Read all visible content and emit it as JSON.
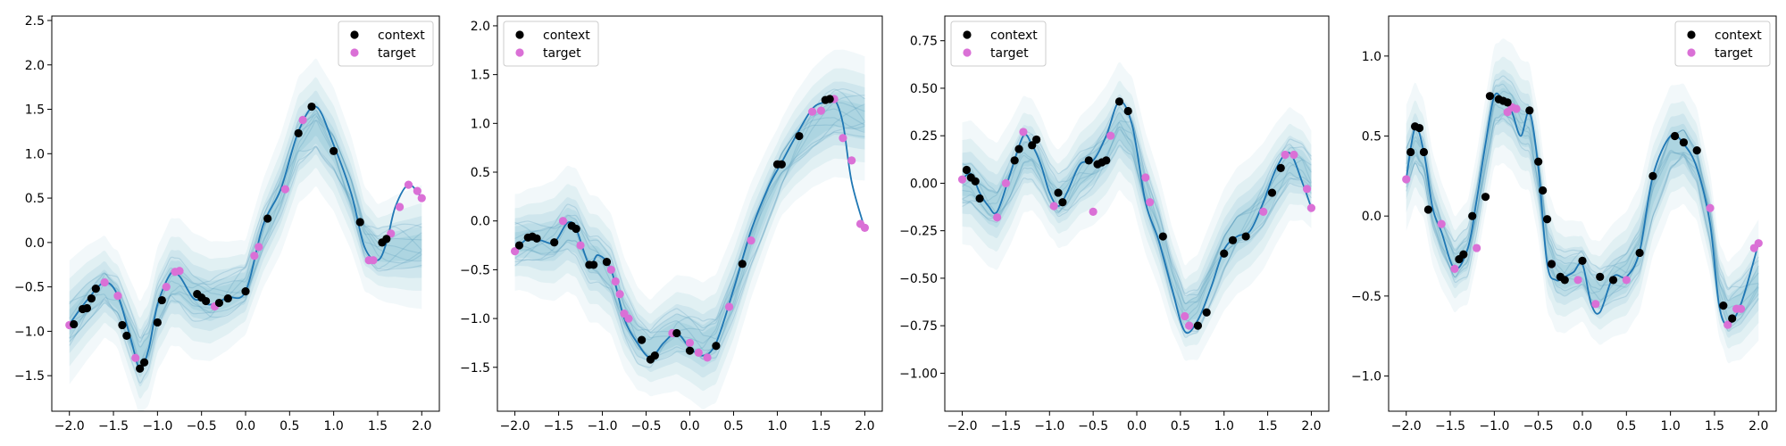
{
  "chart_data": [
    {
      "type": "line",
      "xlim": [
        -2.2,
        2.2
      ],
      "ylim": [
        -1.9,
        2.55
      ],
      "xticks": [
        -2.0,
        -1.5,
        -1.0,
        -0.5,
        0.0,
        0.5,
        1.0,
        1.5,
        2.0
      ],
      "xtick_labels": [
        "−2.0",
        "−1.5",
        "−1.0",
        "−0.5",
        "0.0",
        "0.5",
        "1.0",
        "1.5",
        "2.0"
      ],
      "yticks": [
        -1.5,
        -1.0,
        -0.5,
        0.0,
        0.5,
        1.0,
        1.5,
        2.0,
        2.5
      ],
      "ytick_labels": [
        "−1.5",
        "−1.0",
        "−0.5",
        "0.0",
        "0.5",
        "1.0",
        "1.5",
        "2.0",
        "2.5"
      ],
      "legend": {
        "location": "upper-right",
        "entries": [
          "context",
          "target"
        ]
      },
      "true_function": {
        "x": [
          -2.0,
          -1.8,
          -1.6,
          -1.45,
          -1.3,
          -1.2,
          -1.1,
          -1.0,
          -0.85,
          -0.75,
          -0.6,
          -0.5,
          -0.4,
          -0.2,
          0.0,
          0.2,
          0.4,
          0.6,
          0.8,
          1.0,
          1.2,
          1.35,
          1.5,
          1.6,
          1.7,
          1.85,
          2.0
        ],
        "y": [
          -0.92,
          -0.65,
          -0.45,
          -0.6,
          -1.1,
          -1.42,
          -1.2,
          -0.7,
          -0.35,
          -0.38,
          -0.62,
          -0.65,
          -0.7,
          -0.62,
          -0.55,
          0.2,
          0.6,
          1.25,
          1.53,
          1.1,
          0.55,
          -0.05,
          -0.2,
          0.0,
          0.4,
          0.65,
          0.5
        ]
      },
      "mean_prediction": {
        "x": [
          -2.0,
          -1.8,
          -1.6,
          -1.45,
          -1.3,
          -1.2,
          -1.1,
          -1.0,
          -0.85,
          -0.75,
          -0.6,
          -0.5,
          -0.4,
          -0.2,
          0.0,
          0.2,
          0.4,
          0.6,
          0.8,
          1.0,
          1.2,
          1.35,
          1.5,
          1.6,
          1.7,
          1.85,
          2.0
        ],
        "y": [
          -0.9,
          -0.68,
          -0.5,
          -0.65,
          -1.05,
          -1.3,
          -1.15,
          -0.75,
          -0.45,
          -0.45,
          -0.6,
          -0.63,
          -0.66,
          -0.6,
          -0.5,
          0.1,
          0.55,
          1.15,
          1.35,
          1.05,
          0.55,
          0.05,
          -0.1,
          -0.1,
          -0.08,
          -0.07,
          -0.05
        ]
      },
      "context": {
        "x": [
          -1.95,
          -1.85,
          -1.8,
          -1.75,
          -1.7,
          -1.4,
          -1.35,
          -1.2,
          -1.15,
          -1.0,
          -0.95,
          -0.55,
          -0.5,
          -0.45,
          -0.3,
          -0.2,
          0.0,
          0.25,
          0.6,
          0.75,
          1.0,
          1.3,
          1.55,
          1.6
        ],
        "y": [
          -0.92,
          -0.75,
          -0.74,
          -0.63,
          -0.52,
          -0.93,
          -1.05,
          -1.42,
          -1.35,
          -0.9,
          -0.65,
          -0.58,
          -0.62,
          -0.66,
          -0.68,
          -0.63,
          -0.55,
          0.27,
          1.23,
          1.53,
          1.03,
          0.23,
          0.0,
          0.04
        ]
      },
      "target": {
        "x": [
          -2.0,
          -1.6,
          -1.45,
          -1.25,
          -0.9,
          -0.8,
          -0.75,
          -0.35,
          0.1,
          0.15,
          0.45,
          0.65,
          1.4,
          1.45,
          1.65,
          1.75,
          1.85,
          1.95,
          2.0
        ],
        "y": [
          -0.93,
          -0.45,
          -0.6,
          -1.3,
          -0.5,
          -0.33,
          -0.32,
          -0.72,
          -0.15,
          -0.05,
          0.6,
          1.38,
          -0.2,
          -0.2,
          0.1,
          0.4,
          0.65,
          0.58,
          0.5
        ]
      }
    },
    {
      "type": "line",
      "xlim": [
        -2.2,
        2.2
      ],
      "ylim": [
        -1.95,
        2.1
      ],
      "xticks": [
        -2.0,
        -1.5,
        -1.0,
        -0.5,
        0.0,
        0.5,
        1.0,
        1.5,
        2.0
      ],
      "xtick_labels": [
        "−2.0",
        "−1.5",
        "−1.0",
        "−0.5",
        "0.0",
        "0.5",
        "1.0",
        "1.5",
        "2.0"
      ],
      "yticks": [
        -1.5,
        -1.0,
        -0.5,
        0.0,
        0.5,
        1.0,
        1.5,
        2.0
      ],
      "ytick_labels": [
        "−1.5",
        "−1.0",
        "−0.5",
        "0.0",
        "0.5",
        "1.0",
        "1.5",
        "2.0"
      ],
      "legend": {
        "location": "upper-left",
        "entries": [
          "context",
          "target"
        ]
      },
      "true_function": {
        "x": [
          -2.0,
          -1.85,
          -1.7,
          -1.55,
          -1.4,
          -1.3,
          -1.15,
          -1.05,
          -0.9,
          -0.75,
          -0.6,
          -0.45,
          -0.3,
          -0.15,
          0.0,
          0.15,
          0.3,
          0.5,
          0.7,
          0.9,
          1.05,
          1.2,
          1.4,
          1.55,
          1.65,
          1.75,
          1.85,
          2.0
        ],
        "y": [
          -0.3,
          -0.18,
          -0.2,
          -0.22,
          -0.02,
          -0.08,
          -0.45,
          -0.35,
          -0.5,
          -1.0,
          -1.25,
          -1.4,
          -1.25,
          -1.15,
          -1.3,
          -1.38,
          -1.25,
          -0.7,
          -0.1,
          0.35,
          0.6,
          0.85,
          1.15,
          1.22,
          1.25,
          1.0,
          0.4,
          -0.08
        ]
      },
      "mean_prediction": {
        "x": [
          -2.0,
          -1.85,
          -1.7,
          -1.55,
          -1.4,
          -1.3,
          -1.15,
          -1.05,
          -0.9,
          -0.75,
          -0.6,
          -0.45,
          -0.3,
          -0.15,
          0.0,
          0.15,
          0.3,
          0.5,
          0.7,
          0.9,
          1.05,
          1.2,
          1.4,
          1.55,
          1.65,
          1.75,
          1.85,
          2.0
        ],
        "y": [
          -0.22,
          -0.2,
          -0.22,
          -0.2,
          -0.08,
          -0.12,
          -0.38,
          -0.4,
          -0.55,
          -0.95,
          -1.2,
          -1.3,
          -1.22,
          -1.15,
          -1.2,
          -1.28,
          -1.2,
          -0.75,
          -0.2,
          0.25,
          0.55,
          0.75,
          0.95,
          1.05,
          1.1,
          1.1,
          1.08,
          1.05
        ]
      },
      "context": {
        "x": [
          -1.95,
          -1.85,
          -1.8,
          -1.75,
          -1.55,
          -1.35,
          -1.3,
          -1.15,
          -1.1,
          -0.95,
          -0.55,
          -0.45,
          -0.4,
          -0.15,
          0.0,
          0.3,
          0.6,
          1.0,
          1.05,
          1.25,
          1.55,
          1.6
        ],
        "y": [
          -0.25,
          -0.17,
          -0.16,
          -0.18,
          -0.22,
          -0.05,
          -0.08,
          -0.45,
          -0.45,
          -0.42,
          -1.22,
          -1.42,
          -1.38,
          -1.15,
          -1.33,
          -1.28,
          -0.44,
          0.58,
          0.58,
          0.87,
          1.24,
          1.25
        ]
      },
      "target": {
        "x": [
          -2.0,
          -1.45,
          -1.25,
          -0.9,
          -0.85,
          -0.8,
          -0.75,
          -0.7,
          -0.2,
          0.0,
          0.1,
          0.2,
          0.45,
          0.7,
          1.4,
          1.5,
          1.65,
          1.75,
          1.85,
          1.95,
          2.0
        ],
        "y": [
          -0.31,
          0.0,
          -0.25,
          -0.5,
          -0.62,
          -0.75,
          -0.95,
          -1.0,
          -1.15,
          -1.25,
          -1.35,
          -1.4,
          -0.88,
          -0.2,
          1.12,
          1.13,
          1.25,
          0.85,
          0.62,
          -0.03,
          -0.07
        ]
      }
    },
    {
      "type": "line",
      "xlim": [
        -2.2,
        2.2
      ],
      "ylim": [
        -1.2,
        0.88
      ],
      "xticks": [
        -2.0,
        -1.5,
        -1.0,
        -0.5,
        0.0,
        0.5,
        1.0,
        1.5,
        2.0
      ],
      "xtick_labels": [
        "−2.0",
        "−1.5",
        "−1.0",
        "−0.5",
        "0.0",
        "0.5",
        "1.0",
        "1.5",
        "2.0"
      ],
      "yticks": [
        -1.0,
        -0.75,
        -0.5,
        -0.25,
        0.0,
        0.25,
        0.5,
        0.75
      ],
      "ytick_labels": [
        "−1.00",
        "−0.75",
        "−0.50",
        "−0.25",
        "0.00",
        "0.25",
        "0.50",
        "0.75"
      ],
      "legend": {
        "location": "upper-left",
        "entries": [
          "context",
          "target"
        ]
      },
      "true_function": {
        "x": [
          -2.0,
          -1.9,
          -1.8,
          -1.7,
          -1.6,
          -1.45,
          -1.3,
          -1.2,
          -1.1,
          -1.0,
          -0.9,
          -0.8,
          -0.65,
          -0.5,
          -0.35,
          -0.2,
          -0.05,
          0.1,
          0.25,
          0.4,
          0.55,
          0.7,
          0.85,
          1.0,
          1.15,
          1.3,
          1.45,
          1.6,
          1.75,
          1.9,
          2.0
        ],
        "y": [
          0.02,
          0.05,
          -0.05,
          -0.12,
          -0.15,
          0.05,
          0.25,
          0.2,
          0.1,
          -0.05,
          -0.12,
          -0.05,
          0.1,
          0.12,
          0.25,
          0.43,
          0.3,
          -0.1,
          -0.3,
          -0.55,
          -0.78,
          -0.72,
          -0.55,
          -0.35,
          -0.28,
          -0.25,
          -0.1,
          0.08,
          0.16,
          0.0,
          -0.13
        ]
      },
      "mean_prediction": {
        "x": [
          -2.0,
          -1.9,
          -1.8,
          -1.7,
          -1.6,
          -1.45,
          -1.3,
          -1.2,
          -1.1,
          -1.0,
          -0.9,
          -0.8,
          -0.65,
          -0.5,
          -0.35,
          -0.2,
          -0.05,
          0.1,
          0.25,
          0.4,
          0.55,
          0.7,
          0.85,
          1.0,
          1.15,
          1.3,
          1.45,
          1.6,
          1.75,
          1.9,
          2.0
        ],
        "y": [
          0.0,
          0.0,
          -0.05,
          -0.1,
          -0.12,
          0.0,
          0.15,
          0.15,
          0.08,
          -0.02,
          -0.08,
          -0.05,
          0.05,
          0.1,
          0.18,
          0.3,
          0.22,
          -0.05,
          -0.25,
          -0.5,
          -0.68,
          -0.65,
          -0.5,
          -0.35,
          -0.25,
          -0.2,
          -0.12,
          0.0,
          0.1,
          0.08,
          0.02
        ]
      },
      "context": {
        "x": [
          -1.95,
          -1.9,
          -1.85,
          -1.8,
          -1.4,
          -1.35,
          -1.2,
          -1.15,
          -0.9,
          -0.85,
          -0.55,
          -0.45,
          -0.4,
          -0.35,
          -0.2,
          -0.1,
          0.3,
          0.7,
          0.8,
          1.0,
          1.1,
          1.25,
          1.55,
          1.65
        ],
        "y": [
          0.07,
          0.03,
          0.01,
          -0.08,
          0.12,
          0.18,
          0.2,
          0.23,
          -0.05,
          -0.1,
          0.12,
          0.1,
          0.11,
          0.12,
          0.43,
          0.38,
          -0.28,
          -0.75,
          -0.68,
          -0.37,
          -0.3,
          -0.28,
          -0.05,
          0.08
        ]
      },
      "target": {
        "x": [
          -2.0,
          -1.6,
          -1.5,
          -1.3,
          -0.95,
          -0.5,
          -0.3,
          0.1,
          0.15,
          0.55,
          0.6,
          1.45,
          1.7,
          1.8,
          1.95,
          2.0
        ],
        "y": [
          0.02,
          -0.18,
          0.0,
          0.27,
          -0.12,
          -0.15,
          0.25,
          0.03,
          -0.1,
          -0.7,
          -0.75,
          -0.15,
          0.15,
          0.15,
          -0.03,
          -0.13
        ]
      }
    },
    {
      "type": "line",
      "xlim": [
        -2.2,
        2.2
      ],
      "ylim": [
        -1.22,
        1.25
      ],
      "xticks": [
        -2.0,
        -1.5,
        -1.0,
        -0.5,
        0.0,
        0.5,
        1.0,
        1.5,
        2.0
      ],
      "xtick_labels": [
        "−2.0",
        "−1.5",
        "−1.0",
        "−0.5",
        "0.0",
        "0.5",
        "1.0",
        "1.5",
        "2.0"
      ],
      "yticks": [
        -1.0,
        -0.5,
        0.0,
        0.5,
        1.0
      ],
      "ytick_labels": [
        "−1.0",
        "−0.5",
        "0.0",
        "0.5",
        "1.0"
      ],
      "legend": {
        "location": "upper-right",
        "entries": [
          "context",
          "target"
        ]
      },
      "true_function": {
        "x": [
          -2.0,
          -1.9,
          -1.8,
          -1.7,
          -1.6,
          -1.45,
          -1.3,
          -1.2,
          -1.1,
          -1.0,
          -0.9,
          -0.8,
          -0.7,
          -0.6,
          -0.5,
          -0.4,
          -0.3,
          -0.2,
          -0.1,
          0.0,
          0.1,
          0.2,
          0.35,
          0.5,
          0.65,
          0.8,
          1.0,
          1.15,
          1.3,
          1.45,
          1.55,
          1.65,
          1.8,
          2.0
        ],
        "y": [
          0.23,
          0.55,
          0.4,
          0.05,
          -0.1,
          -0.33,
          -0.2,
          0.1,
          0.45,
          0.75,
          0.72,
          0.65,
          0.5,
          0.65,
          0.3,
          -0.3,
          -0.4,
          -0.38,
          -0.35,
          -0.3,
          -0.55,
          -0.6,
          -0.38,
          -0.38,
          -0.22,
          0.25,
          0.5,
          0.45,
          0.3,
          -0.05,
          -0.55,
          -0.68,
          -0.55,
          -0.17
        ]
      },
      "mean_prediction": {
        "x": [
          -2.0,
          -1.9,
          -1.8,
          -1.7,
          -1.6,
          -1.45,
          -1.3,
          -1.2,
          -1.1,
          -1.0,
          -0.9,
          -0.8,
          -0.7,
          -0.6,
          -0.5,
          -0.4,
          -0.3,
          -0.2,
          -0.1,
          0.0,
          0.1,
          0.2,
          0.35,
          0.5,
          0.65,
          0.8,
          1.0,
          1.15,
          1.3,
          1.45,
          1.55,
          1.65,
          1.8,
          2.0
        ],
        "y": [
          0.3,
          0.45,
          0.35,
          0.05,
          -0.12,
          -0.3,
          -0.22,
          0.05,
          0.38,
          0.68,
          0.72,
          0.68,
          0.58,
          0.55,
          0.25,
          -0.2,
          -0.35,
          -0.38,
          -0.36,
          -0.35,
          -0.45,
          -0.48,
          -0.4,
          -0.35,
          -0.2,
          0.15,
          0.42,
          0.45,
          0.32,
          -0.05,
          -0.45,
          -0.6,
          -0.55,
          -0.4
        ]
      },
      "context": {
        "x": [
          -1.95,
          -1.9,
          -1.85,
          -1.8,
          -1.75,
          -1.4,
          -1.35,
          -1.25,
          -1.1,
          -1.05,
          -0.95,
          -0.9,
          -0.85,
          -0.6,
          -0.5,
          -0.45,
          -0.4,
          -0.35,
          -0.25,
          -0.2,
          0.0,
          0.2,
          0.35,
          0.65,
          0.8,
          1.05,
          1.15,
          1.3,
          1.6,
          1.7
        ],
        "y": [
          0.4,
          0.56,
          0.55,
          0.4,
          0.04,
          -0.27,
          -0.24,
          0.0,
          0.12,
          0.75,
          0.73,
          0.72,
          0.71,
          0.66,
          0.34,
          0.16,
          -0.02,
          -0.3,
          -0.38,
          -0.4,
          -0.28,
          -0.38,
          -0.4,
          -0.23,
          0.25,
          0.5,
          0.46,
          0.41,
          -0.56,
          -0.64
        ]
      },
      "target": {
        "x": [
          -2.0,
          -1.6,
          -1.45,
          -1.2,
          -0.85,
          -0.8,
          -0.75,
          -0.35,
          -0.05,
          0.15,
          0.5,
          1.45,
          1.65,
          1.75,
          1.8,
          1.95,
          2.0
        ],
        "y": [
          0.23,
          -0.05,
          -0.33,
          -0.2,
          0.65,
          0.68,
          0.67,
          -0.3,
          -0.4,
          -0.55,
          -0.4,
          0.05,
          -0.68,
          -0.58,
          -0.58,
          -0.2,
          -0.17
        ]
      }
    }
  ],
  "style": {
    "context_color": "#000000",
    "target_color": "#da70d6",
    "line_color": "#1f77b4",
    "band_color": "#7fbfd0"
  }
}
